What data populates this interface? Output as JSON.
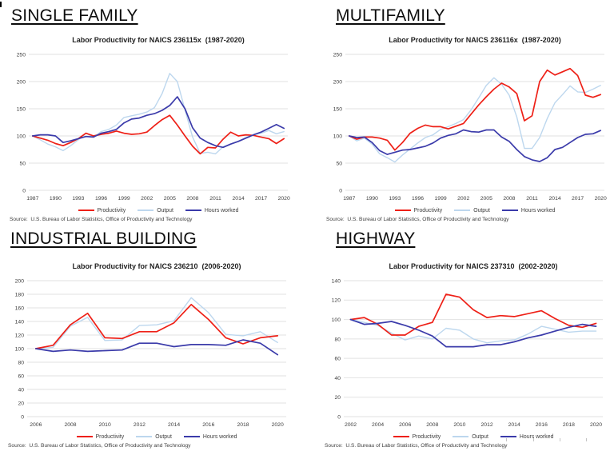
{
  "source_text": "Source:  U.S. Bureau of Labor Statistics, Office of Productivity and Technology",
  "sections": [
    {
      "heading": "SINGLE FAMILY"
    },
    {
      "heading": "MULTIFAMILY"
    },
    {
      "heading": "INDUSTRIAL BUILDING"
    },
    {
      "heading": "HIGHWAY"
    }
  ],
  "colors": {
    "productivity": "#ee2017",
    "output": "#bdd7ee",
    "hours_worked": "#3b3baa",
    "gridline": "#e2e2e2"
  },
  "chart_data": [
    {
      "type": "line",
      "title": "Labor Productivity for NAICS 236115x  (1987-2020)",
      "xlabel": "",
      "ylabel": "",
      "x_start": 1987,
      "x_end": 2020,
      "x_tick_step": 3,
      "ylim": [
        0,
        250
      ],
      "y_tick_step": 50,
      "grid": "horizontal",
      "legend_position": "bottom",
      "series": [
        {
          "name": "Productivity",
          "color_key": "productivity",
          "values": [
            100,
            96,
            92,
            86,
            82,
            88,
            95,
            105,
            100,
            103,
            105,
            109,
            105,
            103,
            104,
            107,
            119,
            130,
            138,
            120,
            100,
            81,
            67,
            79,
            78,
            94,
            107,
            100,
            102,
            101,
            98,
            95,
            86,
            95
          ]
        },
        {
          "name": "Output",
          "color_key": "output",
          "values": [
            100,
            93,
            85,
            80,
            73,
            82,
            93,
            105,
            98,
            108,
            112,
            120,
            134,
            137,
            140,
            144,
            152,
            178,
            215,
            200,
            148,
            98,
            68,
            70,
            67,
            80,
            85,
            90,
            97,
            102,
            105,
            110,
            104,
            108
          ]
        },
        {
          "name": "Hours worked",
          "color_key": "hours_worked",
          "values": [
            100,
            102,
            102,
            100,
            88,
            91,
            95,
            99,
            98,
            105,
            108,
            112,
            124,
            131,
            133,
            138,
            141,
            147,
            156,
            172,
            150,
            115,
            96,
            88,
            82,
            79,
            85,
            90,
            96,
            102,
            107,
            114,
            121,
            114
          ]
        }
      ]
    },
    {
      "type": "line",
      "title": "Labor Productivity for NAICS 236116x  (1987-2020)",
      "xlabel": "",
      "ylabel": "",
      "x_start": 1987,
      "x_end": 2020,
      "x_tick_step": 3,
      "ylim": [
        0,
        250
      ],
      "y_tick_step": 50,
      "grid": "horizontal",
      "legend_position": "bottom",
      "series": [
        {
          "name": "Productivity",
          "color_key": "productivity",
          "values": [
            100,
            94,
            98,
            98,
            96,
            92,
            74,
            88,
            105,
            114,
            120,
            117,
            117,
            113,
            118,
            123,
            140,
            157,
            172,
            186,
            197,
            190,
            178,
            128,
            137,
            200,
            221,
            212,
            218,
            224,
            211,
            175,
            171,
            176
          ]
        },
        {
          "name": "Output",
          "color_key": "output",
          "values": [
            100,
            91,
            96,
            85,
            67,
            60,
            52,
            65,
            76,
            87,
            97,
            102,
            112,
            117,
            123,
            130,
            148,
            170,
            193,
            207,
            195,
            175,
            135,
            77,
            77,
            97,
            132,
            161,
            176,
            192,
            181,
            180,
            186,
            193
          ]
        },
        {
          "name": "Hours worked",
          "color_key": "hours_worked",
          "values": [
            100,
            97,
            98,
            88,
            73,
            66,
            70,
            74,
            75,
            78,
            81,
            87,
            96,
            101,
            104,
            111,
            108,
            107,
            111,
            111,
            98,
            90,
            75,
            62,
            56,
            53,
            60,
            75,
            79,
            88,
            97,
            103,
            104,
            110
          ]
        }
      ]
    },
    {
      "type": "line",
      "title": "Labor Productivity for NAICS 236210  (2006-2020)",
      "xlabel": "",
      "ylabel": "",
      "x_start": 2006,
      "x_end": 2020,
      "x_tick_step": 2,
      "ylim": [
        0,
        200
      ],
      "y_tick_step": 20,
      "grid": "horizontal",
      "legend_position": "bottom",
      "series": [
        {
          "name": "Productivity",
          "color_key": "productivity",
          "values": [
            100,
            105,
            135,
            152,
            116,
            115,
            125,
            125,
            138,
            165,
            143,
            116,
            107,
            116,
            119
          ]
        },
        {
          "name": "Output",
          "color_key": "output",
          "values": [
            100,
            102,
            133,
            146,
            112,
            113,
            134,
            135,
            141,
            175,
            153,
            121,
            119,
            125,
            109
          ]
        },
        {
          "name": "Hours worked",
          "color_key": "hours_worked",
          "values": [
            100,
            96,
            98,
            96,
            97,
            98,
            108,
            108,
            103,
            106,
            106,
            105,
            113,
            108,
            91
          ]
        }
      ]
    },
    {
      "type": "line",
      "title": "Labor Productivity for NAICS 237310  (2002-2020)",
      "xlabel": "",
      "ylabel": "",
      "x_start": 2002,
      "x_end": 2020,
      "x_tick_step": 2,
      "ylim": [
        0,
        140
      ],
      "y_tick_step": 20,
      "grid": "horizontal",
      "legend_position": "bottom",
      "series": [
        {
          "name": "Productivity",
          "color_key": "productivity",
          "values": [
            100,
            102,
            95,
            84,
            84,
            93,
            97,
            126,
            123,
            110,
            102,
            104,
            103,
            106,
            109,
            101,
            94,
            92,
            96
          ]
        },
        {
          "name": "Output",
          "color_key": "output",
          "values": [
            100,
            97,
            94,
            86,
            79,
            83,
            80,
            91,
            89,
            80,
            76,
            78,
            79,
            85,
            93,
            90,
            87,
            88,
            88
          ]
        },
        {
          "name": "Hours worked",
          "color_key": "hours_worked",
          "values": [
            100,
            95,
            96,
            98,
            94,
            89,
            83,
            72,
            72,
            72,
            74,
            74,
            77,
            81,
            84,
            88,
            92,
            95,
            93
          ]
        }
      ]
    }
  ]
}
